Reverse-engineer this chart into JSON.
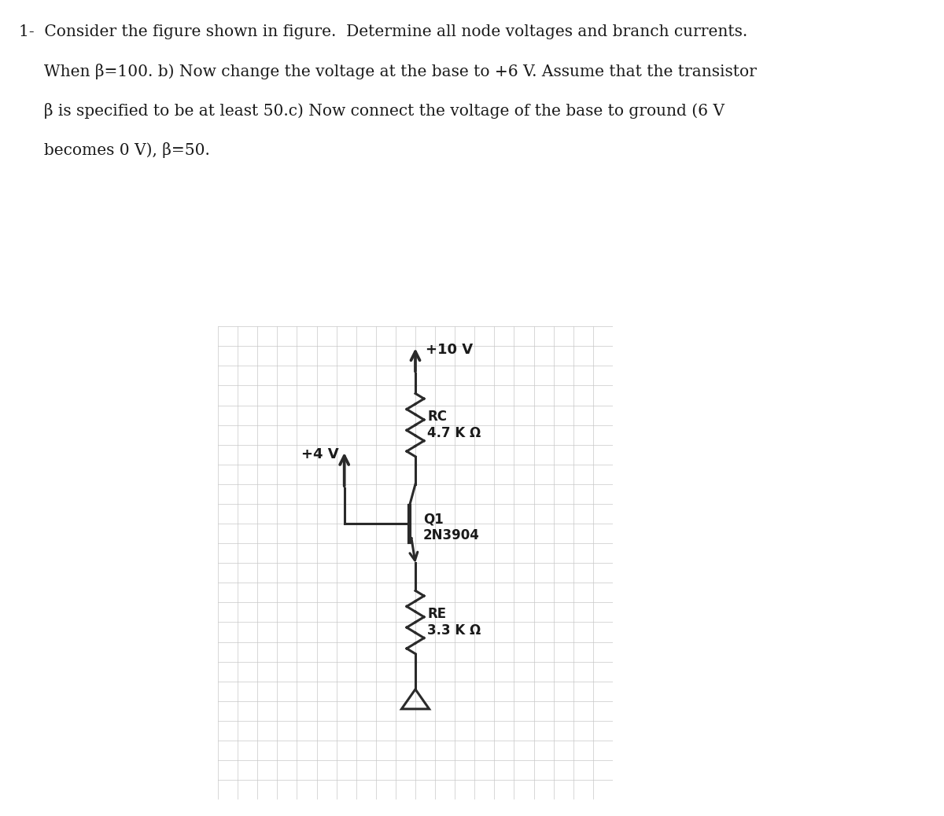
{
  "bg_color": "#ffffff",
  "grid_bg_color": "#e8e8e8",
  "grid_color": "#c8c8c8",
  "line_color": "#2a2a2a",
  "text_color": "#1a1a1a",
  "v10_label": "+10 V",
  "v4_label": "+4 V",
  "rc_label": "RC\n4.7 K Ω",
  "re_label": "RE\n3.3 K Ω",
  "q1_label": "Q1\n2N3904",
  "figsize": [
    12.0,
    10.38
  ],
  "dpi": 100,
  "title_lines": [
    "1-  Consider the figure shown in figure.  Determine all node voltages and branch currents.",
    "     When β=100. b) Now change the voltage at the base to +6 V. Assume that the transistor",
    "     β is specified to be at least 50.c) Now connect the voltage of the base to ground (6 V",
    "     becomes 0 V), β=50."
  ],
  "title_bold_parts": [
    "b)",
    "β=100",
    "β",
    "β=50"
  ]
}
